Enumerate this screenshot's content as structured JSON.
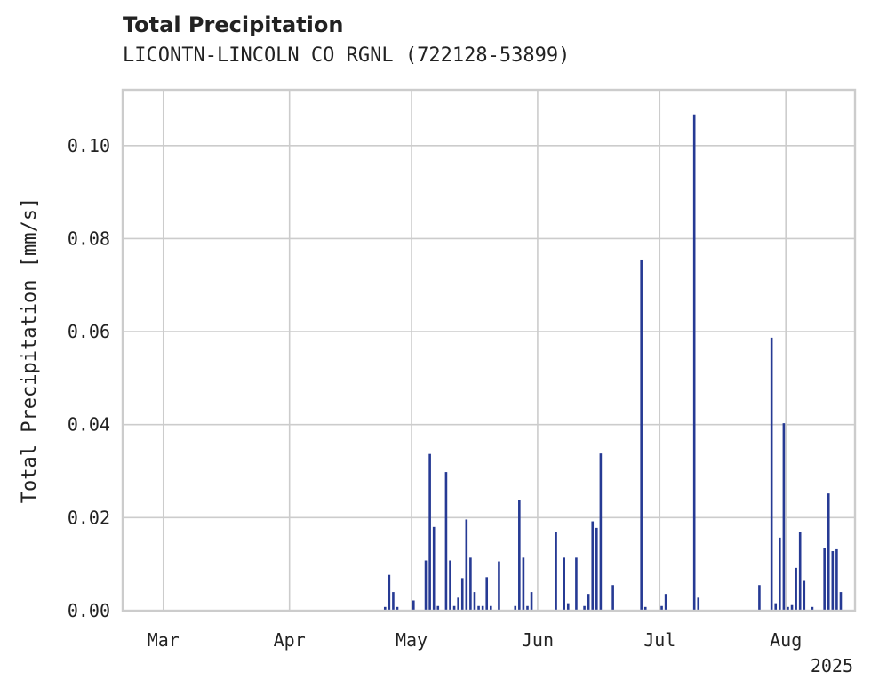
{
  "header": {
    "title": "Total Precipitation",
    "subtitle": "LICONTN-LINCOLN CO RGNL (722128-53899)"
  },
  "chart_data": {
    "type": "bar",
    "title": "Total Precipitation",
    "subtitle": "LICONTN-LINCOLN CO RGNL (722128-53899)",
    "ylabel": "Total Precipitation [mm/s]",
    "xlabel": "",
    "ylim": [
      0,
      0.112
    ],
    "xlim": [
      "2025-02-19",
      "2025-08-18"
    ],
    "yticks": [
      0.0,
      0.02,
      0.04,
      0.06,
      0.08,
      0.1
    ],
    "ytick_labels": [
      "0.00",
      "0.02",
      "0.04",
      "0.06",
      "0.08",
      "0.10"
    ],
    "xticks": [
      {
        "date": "2025-03-01",
        "label": "Mar"
      },
      {
        "date": "2025-04-01",
        "label": "Apr"
      },
      {
        "date": "2025-05-01",
        "label": "May"
      },
      {
        "date": "2025-06-01",
        "label": "Jun"
      },
      {
        "date": "2025-07-01",
        "label": "Jul"
      },
      {
        "date": "2025-08-01",
        "label": "Aug"
      }
    ],
    "xaxis_year_label": "2025",
    "grid": true,
    "bar_color": "#263a94",
    "grid_color": "#cccccc",
    "series": [
      {
        "x": [
          "2025-04-24",
          "2025-04-25",
          "2025-04-26",
          "2025-04-27",
          "2025-05-01",
          "2025-05-04",
          "2025-05-05",
          "2025-05-06",
          "2025-05-07",
          "2025-05-09",
          "2025-05-10",
          "2025-05-11",
          "2025-05-12",
          "2025-05-13",
          "2025-05-14",
          "2025-05-15",
          "2025-05-16",
          "2025-05-17",
          "2025-05-18",
          "2025-05-19",
          "2025-05-20",
          "2025-05-22",
          "2025-05-26",
          "2025-05-27",
          "2025-05-28",
          "2025-05-29",
          "2025-05-30",
          "2025-06-05",
          "2025-06-07",
          "2025-06-08",
          "2025-06-10",
          "2025-06-12",
          "2025-06-13",
          "2025-06-14",
          "2025-06-15",
          "2025-06-16",
          "2025-06-19",
          "2025-06-26",
          "2025-06-27",
          "2025-07-01",
          "2025-07-02",
          "2025-07-09",
          "2025-07-10",
          "2025-07-25",
          "2025-07-28",
          "2025-07-29",
          "2025-07-30",
          "2025-07-31",
          "2025-08-01",
          "2025-08-02",
          "2025-08-03",
          "2025-08-04",
          "2025-08-05",
          "2025-08-07",
          "2025-08-10",
          "2025-08-11",
          "2025-08-12",
          "2025-08-13",
          "2025-08-14"
        ],
        "values": [
          0.0008,
          0.0077,
          0.004,
          0.0008,
          0.0022,
          0.0108,
          0.0337,
          0.018,
          0.001,
          0.0298,
          0.0108,
          0.001,
          0.0028,
          0.007,
          0.0196,
          0.0114,
          0.004,
          0.001,
          0.001,
          0.0072,
          0.001,
          0.0106,
          0.001,
          0.0238,
          0.0114,
          0.001,
          0.004,
          0.017,
          0.0114,
          0.0016,
          0.0114,
          0.001,
          0.0036,
          0.0192,
          0.0178,
          0.0338,
          0.0055,
          0.0755,
          0.0008,
          0.001,
          0.0036,
          0.1067,
          0.0028,
          0.0055,
          0.0587,
          0.0016,
          0.0157,
          0.0403,
          0.0008,
          0.0012,
          0.0092,
          0.0169,
          0.0064,
          0.0008,
          0.0134,
          0.0252,
          0.0128,
          0.0132,
          0.004
        ]
      }
    ]
  }
}
